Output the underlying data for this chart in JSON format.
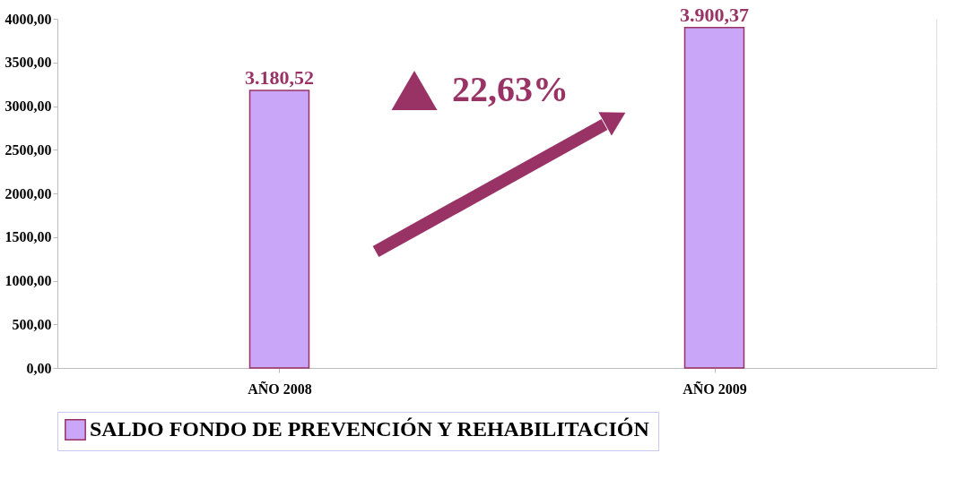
{
  "chart_data": {
    "type": "bar",
    "categories": [
      "AÑO 2008",
      "AÑO 2009"
    ],
    "series": [
      {
        "name": "SALDO FONDO DE PREVENCIÓN Y REHABILITACIÓN",
        "color": "#c9a6f7",
        "values": [
          3180.52,
          3900.37
        ],
        "value_labels": [
          "3.180,52",
          "3.900,37"
        ]
      }
    ],
    "ylim": [
      0,
      4000
    ],
    "yticks": [
      {
        "value": 0,
        "label": "0,00"
      },
      {
        "value": 500,
        "label": "500,00"
      },
      {
        "value": 1000,
        "label": "1000,00"
      },
      {
        "value": 1500,
        "label": "1500,00"
      },
      {
        "value": 2000,
        "label": "2000,00"
      },
      {
        "value": 2500,
        "label": "2500,00"
      },
      {
        "value": 3000,
        "label": "3000,00"
      },
      {
        "value": 3500,
        "label": "3500,00"
      },
      {
        "value": 4000,
        "label": "4000,00"
      }
    ],
    "grid": "y",
    "legend": "bottom",
    "annotations": [
      "22,63%"
    ]
  }
}
